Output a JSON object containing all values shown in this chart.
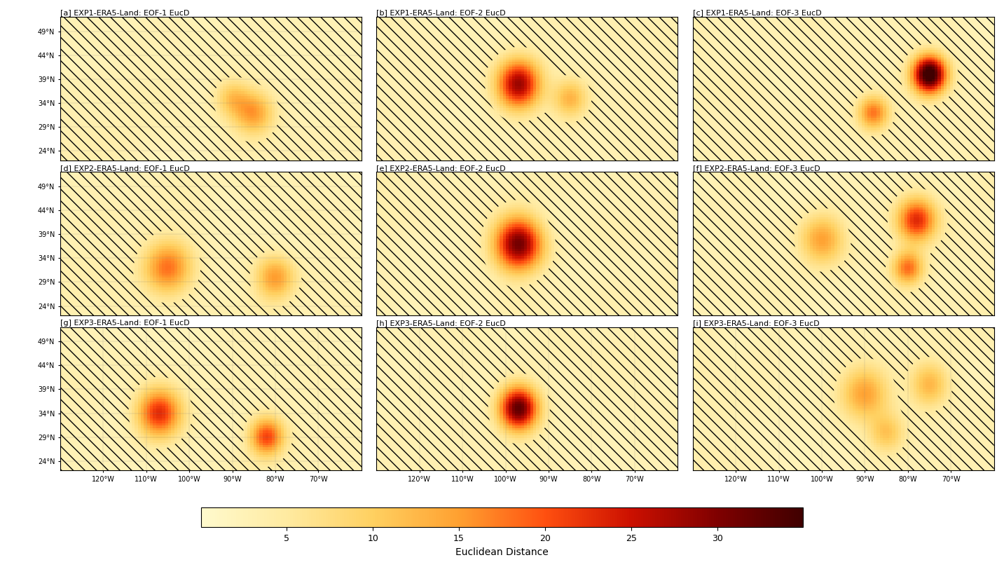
{
  "titles": [
    "[a] EXP1-ERA5-Land: EOF-1 EucD",
    "[b] EXP1-ERA5-Land: EOF-2 EucD",
    "[c] EXP1-ERA5-Land: EOF-3 EucD",
    "[d] EXP2-ERA5-Land: EOF-1 EucD",
    "[e] EXP2-ERA5-Land: EOF-2 EucD",
    "[f] EXP2-ERA5-Land: EOF-3 EucD",
    "[g] EXP3-ERA5-Land: EOF-1 EucD",
    "[h] EXP3-ERA5-Land: EOF-2 EucD",
    "[i] EXP3-ERA5-Land: EOF-3 EucD"
  ],
  "lon_range": [
    -130,
    -60
  ],
  "lat_range": [
    22,
    52
  ],
  "vmin": 0,
  "vmax": 35,
  "threshold": 5,
  "colorbar_ticks": [
    5,
    10,
    15,
    20,
    25,
    30
  ],
  "colorbar_label": "Euclidean Distance",
  "xticks": [
    -120,
    -110,
    -100,
    -90,
    -80,
    -70
  ],
  "yticks": [
    24,
    29,
    34,
    39,
    44,
    49
  ],
  "xlabel_fmt": "{}°W",
  "ylabel_fmt": "{}°N",
  "colormap_colors": [
    "#FFFACD",
    "#FFE4B0",
    "#FFD080",
    "#FFA040",
    "#FF6020",
    "#E02000",
    "#A00000",
    "#600000"
  ],
  "nrows": 3,
  "ncols": 3,
  "random_seed_base": 42,
  "background_color": "#FFFFFF",
  "figure_size": [
    14.33,
    8.09
  ],
  "dpi": 100
}
